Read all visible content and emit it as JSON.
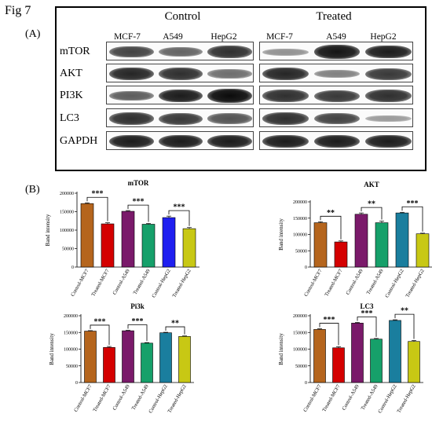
{
  "figure": {
    "label": "Fig 7",
    "panel_a": "(A)",
    "panel_b": "(B)"
  },
  "blot": {
    "groups": [
      "Control",
      "Treated"
    ],
    "lanes": [
      "MCF-7",
      "A549",
      "HepG2"
    ],
    "proteins": [
      {
        "name": "mTOR",
        "control": [
          0.7,
          0.5,
          0.8
        ],
        "treated": [
          0.25,
          0.95,
          0.9
        ]
      },
      {
        "name": "AKT",
        "control": [
          0.85,
          0.8,
          0.45
        ],
        "treated": [
          0.85,
          0.35,
          0.75
        ]
      },
      {
        "name": "PI3K",
        "control": [
          0.55,
          0.9,
          1.0
        ],
        "treated": [
          0.8,
          0.75,
          0.8
        ]
      },
      {
        "name": "LC3",
        "control": [
          0.8,
          0.75,
          0.6
        ],
        "treated": [
          0.8,
          0.7,
          0.2
        ]
      },
      {
        "name": "GAPDH",
        "control": [
          0.9,
          0.9,
          0.9
        ],
        "treated": [
          0.9,
          0.9,
          0.9
        ]
      }
    ]
  },
  "chart_data": [
    {
      "type": "bar",
      "title": "mTOR",
      "ylabel": "Band intensity",
      "ylim": [
        0,
        200000
      ],
      "yticks": [
        "0",
        "50000",
        "100000",
        "150000",
        "200000"
      ],
      "categories": [
        "Control-MCF7",
        "Treated-MCF7",
        "Control-A549",
        "Treated-A549",
        "Control-HepG2",
        "Treated-HepG2"
      ],
      "values": [
        172000,
        117000,
        151000,
        116000,
        134000,
        104000
      ],
      "errors": [
        2000,
        3000,
        2000,
        2000,
        4000,
        3000
      ],
      "colors": [
        "#b5651d",
        "#d40000",
        "#7a1a6a",
        "#16a06a",
        "#1f1ff0",
        "#c8c814"
      ],
      "significance": [
        "***",
        "***",
        "***"
      ]
    },
    {
      "type": "bar",
      "title": "AKT",
      "ylabel": "Band intensity",
      "ylim": [
        0,
        200000
      ],
      "yticks": [
        "0",
        "50000",
        "100000",
        "150000",
        "200000"
      ],
      "categories": [
        "Control-MCF7",
        "Treated-MCF7",
        "Control-A549",
        "Treated-A549",
        "Control-HepG2",
        "Treated-HepG2"
      ],
      "values": [
        136000,
        77000,
        162000,
        136000,
        166000,
        102000
      ],
      "errors": [
        3000,
        3000,
        4000,
        5000,
        2000,
        2000
      ],
      "colors": [
        "#b5651d",
        "#d40000",
        "#7a1a6a",
        "#16a06a",
        "#1a7e9e",
        "#c8c814"
      ],
      "significance": [
        "**",
        "**",
        "***"
      ]
    },
    {
      "type": "bar",
      "title": "Pi3k",
      "ylabel": "Band intensity",
      "ylim": [
        0,
        200000
      ],
      "yticks": [
        "0",
        "50000",
        "100000",
        "150000",
        "200000"
      ],
      "categories": [
        "Control-MCF7",
        "Treated-MCF7",
        "Control-A549",
        "Treated-A549",
        "Control-HepG2",
        "Treated-HepG2"
      ],
      "values": [
        154000,
        105000,
        155000,
        118000,
        149000,
        138000
      ],
      "errors": [
        1500,
        3000,
        1500,
        1500,
        1500,
        1500
      ],
      "colors": [
        "#b5651d",
        "#d40000",
        "#7a1a6a",
        "#16a06a",
        "#1a7e9e",
        "#c8c814"
      ],
      "significance": [
        "***",
        "***",
        "**"
      ]
    },
    {
      "type": "bar",
      "title": "LC3",
      "ylabel": "Band intensity",
      "ylim": [
        0,
        200000
      ],
      "yticks": [
        "0",
        "50000",
        "100000",
        "150000",
        "200000"
      ],
      "categories": [
        "Control-MCF7",
        "Treated-MCF7",
        "Control-A549",
        "Treated-A549",
        "Control-HepG2",
        "Treated-HepG2"
      ],
      "values": [
        159000,
        104000,
        178000,
        130000,
        186000,
        123000
      ],
      "errors": [
        2000,
        3000,
        2000,
        2000,
        2000,
        3000
      ],
      "colors": [
        "#b5651d",
        "#d40000",
        "#7a1a6a",
        "#16a06a",
        "#1a7e9e",
        "#c8c814"
      ],
      "significance": [
        "***",
        "***",
        "**"
      ]
    }
  ]
}
